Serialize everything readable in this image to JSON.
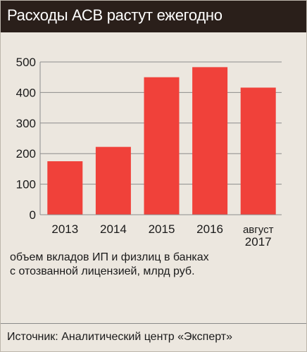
{
  "header": {
    "title": "Расходы АСВ растут ежегодно"
  },
  "chart_data": {
    "type": "bar",
    "title": "",
    "xlabel": "",
    "ylabel": "",
    "categories": [
      "2013",
      "2014",
      "2015",
      "2016",
      "август 2017"
    ],
    "category_lines": [
      [
        "2013"
      ],
      [
        "2014"
      ],
      [
        "2015"
      ],
      [
        "2016"
      ],
      [
        "август",
        "2017"
      ]
    ],
    "values": [
      175,
      222,
      450,
      483,
      416
    ],
    "ylim": [
      0,
      500
    ],
    "yticks": [
      "0",
      "100",
      "200",
      "300",
      "400",
      "500"
    ],
    "grid": true,
    "bar_color": "#f0413a"
  },
  "caption": {
    "line1": "объем вкладов ИП и физлиц в банках",
    "line2": "с отозванной лицензией, млрд руб."
  },
  "source": "Источник: Аналитический центр «Эксперт»"
}
